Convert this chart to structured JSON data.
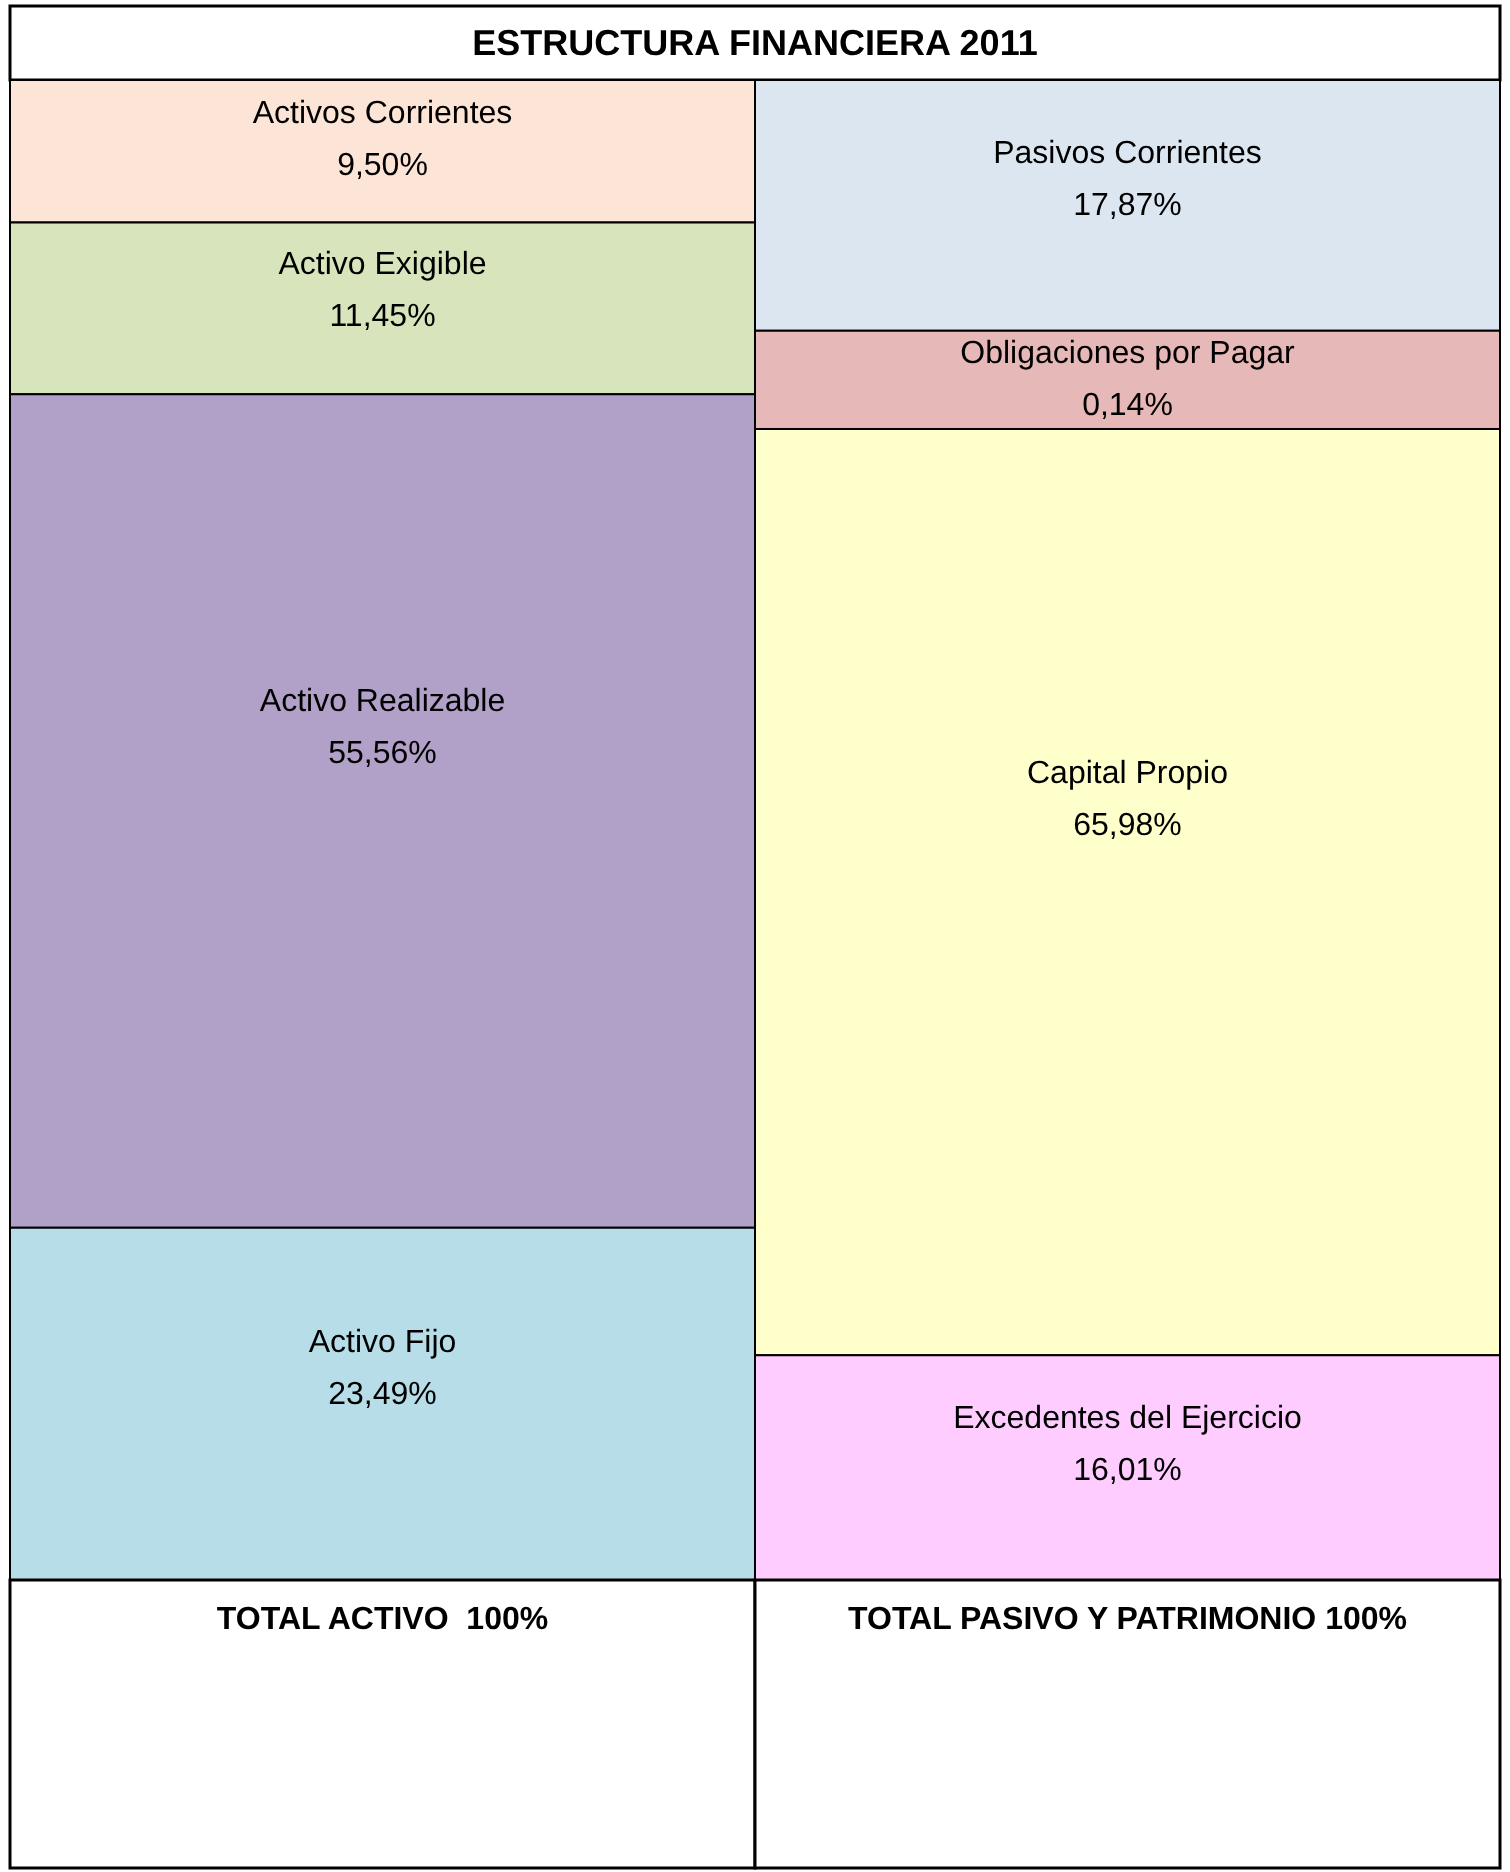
{
  "chart_data": {
    "type": "other",
    "title": "ESTRUCTURA FINANCIERA 2011",
    "categories": [
      "TOTAL ACTIVO  100%",
      "TOTAL PASIVO Y PATRIMONIO 100%"
    ],
    "series": [
      {
        "name": "Activos Corrientes",
        "color": "#fce4d6",
        "values": [
          9.5,
          null
        ],
        "value_labels": [
          "9,50%",
          null
        ]
      },
      {
        "name": "Activo Exigible",
        "color": "#d8e4bc",
        "values": [
          11.45,
          null
        ],
        "value_labels": [
          "11,45%",
          null
        ]
      },
      {
        "name": "Activo Realizable",
        "color": "#b1a0c7",
        "values": [
          55.56,
          null
        ],
        "value_labels": [
          "55,56%",
          null
        ]
      },
      {
        "name": "Activo Fijo",
        "color": "#b7dee8",
        "values": [
          23.49,
          null
        ],
        "value_labels": [
          "23,49%",
          null
        ]
      },
      {
        "name": "Pasivos Corrientes",
        "color": "#dce6f1",
        "values": [
          null,
          17.87
        ],
        "value_labels": [
          null,
          "17,87%"
        ]
      },
      {
        "name": "Obligaciones por Pagar",
        "color": "#e6b8b7",
        "values": [
          null,
          0.14
        ],
        "value_labels": [
          null,
          "0,14%"
        ]
      },
      {
        "name": "Capital Propio",
        "color": "#ffffcc",
        "values": [
          null,
          65.98
        ],
        "value_labels": [
          null,
          "65,98%"
        ]
      },
      {
        "name": "Excedentes del Ejercicio",
        "color": "#ffccff",
        "values": [
          null,
          16.01
        ],
        "value_labels": [
          null,
          "16,01%"
        ]
      }
    ]
  }
}
